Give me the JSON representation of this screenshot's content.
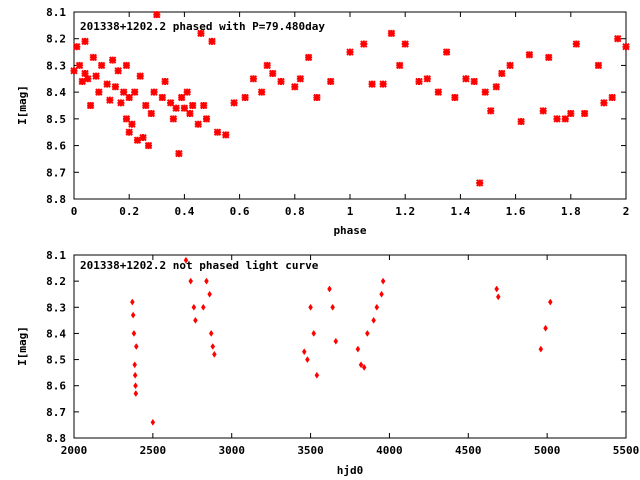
{
  "chart_data": [
    {
      "type": "scatter",
      "title": "201338+1202.2 phased with P=79.480day",
      "xlabel": "phase",
      "ylabel": "I[mag]",
      "xlim": [
        0,
        2
      ],
      "ylim": [
        8.8,
        8.1
      ],
      "y_inverted": true,
      "xticks": [
        0,
        0.2,
        0.4,
        0.6,
        0.8,
        1,
        1.2,
        1.4,
        1.6,
        1.8,
        2
      ],
      "xtick_labels": [
        "0",
        "0.2",
        "0.4",
        "0.6",
        "0.8",
        "1",
        "1.2",
        "1.4",
        "1.6",
        "1.8",
        "2"
      ],
      "yticks": [
        8.1,
        8.2,
        8.3,
        8.4,
        8.5,
        8.6,
        8.7,
        8.8
      ],
      "ytick_labels": [
        "8.1",
        "8.2",
        "8.3",
        "8.4",
        "8.5",
        "8.6",
        "8.7",
        "8.8"
      ],
      "grid": false,
      "marker_color": "#ff0000",
      "x": [
        0.0,
        0.01,
        0.02,
        0.03,
        0.04,
        0.04,
        0.05,
        0.06,
        0.07,
        0.08,
        0.09,
        0.1,
        0.12,
        0.13,
        0.14,
        0.15,
        0.16,
        0.17,
        0.18,
        0.19,
        0.19,
        0.2,
        0.2,
        0.21,
        0.22,
        0.23,
        0.24,
        0.25,
        0.26,
        0.27,
        0.28,
        0.29,
        0.3,
        0.32,
        0.33,
        0.35,
        0.36,
        0.37,
        0.38,
        0.39,
        0.4,
        0.41,
        0.42,
        0.43,
        0.45,
        0.46,
        0.47,
        0.48,
        0.5,
        0.52,
        0.55,
        0.58,
        0.62,
        0.65,
        0.68,
        0.7,
        0.72,
        0.75,
        0.8,
        0.82,
        0.85,
        0.88,
        0.93,
        1.0,
        1.05,
        1.08,
        1.12,
        1.15,
        1.18,
        1.2,
        1.25,
        1.28,
        1.32,
        1.35,
        1.38,
        1.42,
        1.45,
        1.47,
        1.49,
        1.51,
        1.53,
        1.55,
        1.58,
        1.62,
        1.65,
        1.7,
        1.72,
        1.75,
        1.78,
        1.8,
        1.82,
        1.85,
        1.9,
        1.92,
        1.95,
        1.97,
        2.0
      ],
      "y": [
        8.32,
        8.23,
        8.3,
        8.36,
        8.21,
        8.33,
        8.35,
        8.45,
        8.27,
        8.34,
        8.4,
        8.3,
        8.37,
        8.43,
        8.28,
        8.38,
        8.32,
        8.44,
        8.4,
        8.3,
        8.5,
        8.42,
        8.55,
        8.52,
        8.4,
        8.58,
        8.34,
        8.57,
        8.45,
        8.6,
        8.48,
        8.4,
        8.11,
        8.42,
        8.36,
        8.44,
        8.5,
        8.46,
        8.63,
        8.42,
        8.46,
        8.4,
        8.48,
        8.45,
        8.52,
        8.18,
        8.45,
        8.5,
        8.21,
        8.55,
        8.56,
        8.44,
        8.42,
        8.35,
        8.4,
        8.3,
        8.33,
        8.36,
        8.38,
        8.35,
        8.27,
        8.42,
        8.36,
        8.25,
        8.22,
        8.37,
        8.37,
        8.18,
        8.3,
        8.22,
        8.36,
        8.35,
        8.4,
        8.25,
        8.42,
        8.35,
        8.36,
        8.74,
        8.4,
        8.47,
        8.38,
        8.33,
        8.3,
        8.51,
        8.26,
        8.47,
        8.27,
        8.5,
        8.5,
        8.48,
        8.22,
        8.48,
        8.3,
        8.44,
        8.42,
        8.2,
        8.23
      ]
    },
    {
      "type": "scatter",
      "title": "201338+1202.2 not phased light curve",
      "xlabel": "hjd0",
      "ylabel": "I[mag]",
      "xlim": [
        2000,
        5500
      ],
      "ylim": [
        8.8,
        8.1
      ],
      "y_inverted": true,
      "xticks": [
        2000,
        2500,
        3000,
        3500,
        4000,
        4500,
        5000,
        5500
      ],
      "xtick_labels": [
        "2000",
        "2500",
        "3000",
        "3500",
        "4000",
        "4500",
        "5000",
        "5500"
      ],
      "yticks": [
        8.1,
        8.2,
        8.3,
        8.4,
        8.5,
        8.6,
        8.7,
        8.8
      ],
      "ytick_labels": [
        "8.1",
        "8.2",
        "8.3",
        "8.4",
        "8.5",
        "8.6",
        "8.7",
        "8.8"
      ],
      "grid": false,
      "marker_color": "#ff0000",
      "x": [
        2370,
        2375,
        2380,
        2385,
        2388,
        2390,
        2392,
        2395,
        2500,
        2710,
        2740,
        2760,
        2770,
        2820,
        2840,
        2860,
        2870,
        2880,
        2890,
        3460,
        3480,
        3500,
        3520,
        3540,
        3620,
        3640,
        3660,
        3800,
        3820,
        3840,
        3860,
        3900,
        3920,
        3950,
        3960,
        4680,
        4690,
        4960,
        4990,
        5020
      ],
      "y": [
        8.28,
        8.33,
        8.4,
        8.52,
        8.56,
        8.6,
        8.63,
        8.45,
        8.74,
        8.12,
        8.2,
        8.3,
        8.35,
        8.3,
        8.2,
        8.25,
        8.4,
        8.45,
        8.48,
        8.47,
        8.5,
        8.3,
        8.4,
        8.56,
        8.23,
        8.3,
        8.43,
        8.46,
        8.52,
        8.53,
        8.4,
        8.35,
        8.3,
        8.25,
        8.2,
        8.23,
        8.26,
        8.46,
        8.38,
        8.28
      ]
    }
  ]
}
